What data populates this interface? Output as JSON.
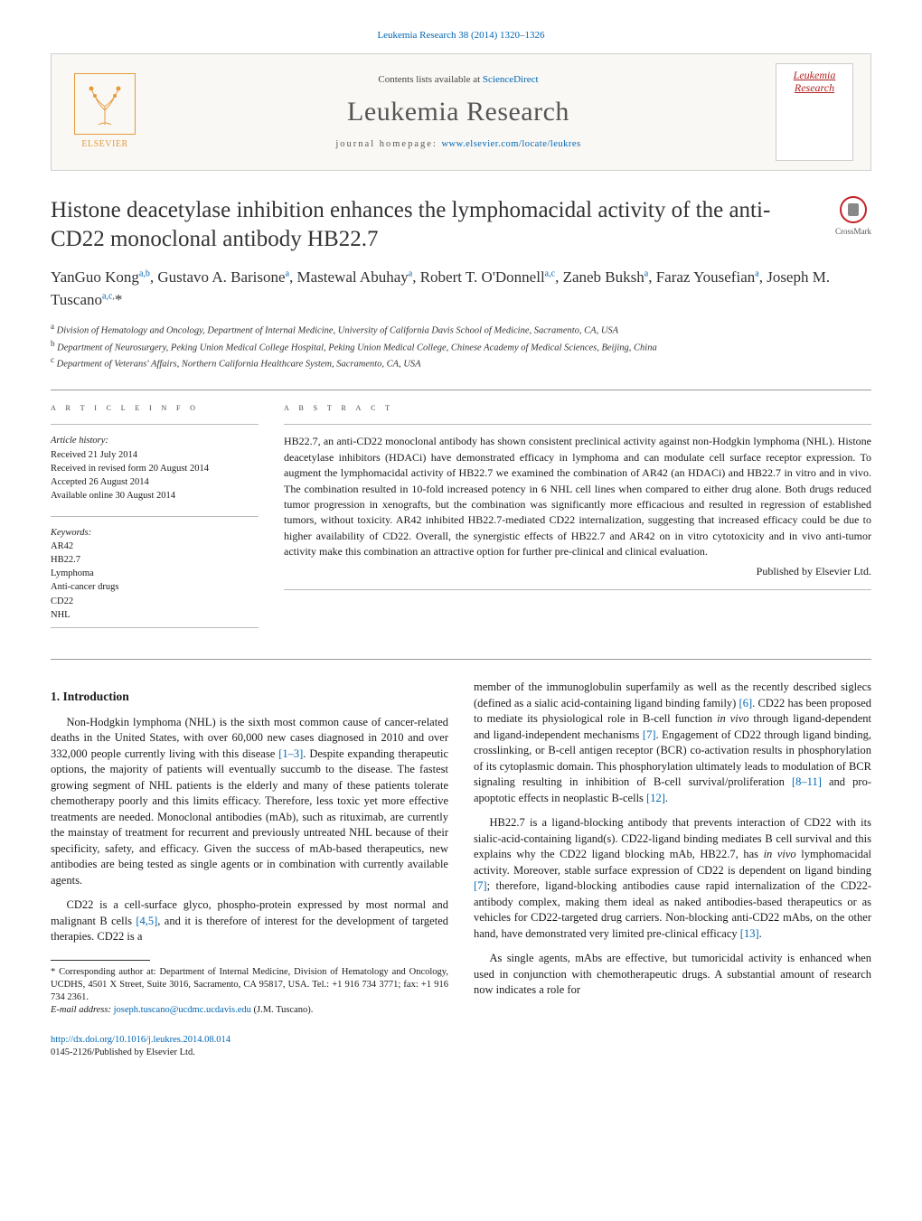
{
  "colors": {
    "link": "#0066b3",
    "elsevier_orange": "#e69a3a",
    "crossmark_red": "#c42026",
    "cover_red": "#b02020",
    "text": "#1a1a1a",
    "muted": "#555555",
    "rule": "#999999"
  },
  "header": {
    "citation": "Leukemia Research 38 (2014) 1320–1326",
    "contents_prefix": "Contents lists available at ",
    "contents_link": "ScienceDirect",
    "journal": "Leukemia Research",
    "homepage_label": "journal homepage: ",
    "homepage_url": "www.elsevier.com/locate/leukres",
    "publisher_logo_text": "ELSEVIER",
    "cover_title": "Leukemia Research"
  },
  "article": {
    "title": "Histone deacetylase inhibition enhances the lymphomacidal activity of the anti-CD22 monoclonal antibody HB22.7",
    "crossmark_label": "CrossMark",
    "authors_html": "YanGuo Kong<sup>a,b</sup>, Gustavo A. Barisone<sup>a</sup>, Mastewal Abuhay<sup>a</sup>, Robert T. O'Donnell<sup>a,c</sup>, Zaneb Buksh<sup>a</sup>, Faraz Yousefian<sup>a</sup>, Joseph M. Tuscano<sup>a,c,</sup><span class=\"asterisk\">*</span>",
    "affiliations": [
      {
        "marker": "a",
        "text": "Division of Hematology and Oncology, Department of Internal Medicine, University of California Davis School of Medicine, Sacramento, CA, USA"
      },
      {
        "marker": "b",
        "text": "Department of Neurosurgery, Peking Union Medical College Hospital, Peking Union Medical College, Chinese Academy of Medical Sciences, Beijing, China"
      },
      {
        "marker": "c",
        "text": "Department of Veterans' Affairs, Northern California Healthcare System, Sacramento, CA, USA"
      }
    ]
  },
  "info": {
    "heading": "a r t i c l e   i n f o",
    "history_label": "Article history:",
    "history": [
      "Received 21 July 2014",
      "Received in revised form 20 August 2014",
      "Accepted 26 August 2014",
      "Available online 30 August 2014"
    ],
    "keywords_label": "Keywords:",
    "keywords": [
      "AR42",
      "HB22.7",
      "Lymphoma",
      "Anti-cancer drugs",
      "CD22",
      "NHL"
    ]
  },
  "abstract": {
    "heading": "a b s t r a c t",
    "text": "HB22.7, an anti-CD22 monoclonal antibody has shown consistent preclinical activity against non-Hodgkin lymphoma (NHL). Histone deacetylase inhibitors (HDACi) have demonstrated efficacy in lymphoma and can modulate cell surface receptor expression. To augment the lymphomacidal activity of HB22.7 we examined the combination of AR42 (an HDACi) and HB22.7 in vitro and in vivo. The combination resulted in 10-fold increased potency in 6 NHL cell lines when compared to either drug alone. Both drugs reduced tumor progression in xenografts, but the combination was significantly more efficacious and resulted in regression of established tumors, without toxicity. AR42 inhibited HB22.7-mediated CD22 internalization, suggesting that increased efficacy could be due to higher availability of CD22. Overall, the synergistic effects of HB22.7 and AR42 on in vitro cytotoxicity and in vivo anti-tumor activity make this combination an attractive option for further pre-clinical and clinical evaluation.",
    "publisher": "Published by Elsevier Ltd."
  },
  "body": {
    "section_number": "1.",
    "section_title": "Introduction",
    "paragraphs_left": [
      "Non-Hodgkin lymphoma (NHL) is the sixth most common cause of cancer-related deaths in the United States, with over 60,000 new cases diagnosed in 2010 and over 332,000 people currently living with this disease [1–3]. Despite expanding therapeutic options, the majority of patients will eventually succumb to the disease. The fastest growing segment of NHL patients is the elderly and many of these patients tolerate chemotherapy poorly and this limits efficacy. Therefore, less toxic yet more effective treatments are needed. Monoclonal antibodies (mAb), such as rituximab, are currently the mainstay of treatment for recurrent and previously untreated NHL because of their specificity, safety, and efficacy. Given the success of mAb-based therapeutics, new antibodies are being tested as single agents or in combination with currently available agents.",
      "CD22 is a cell-surface glyco, phospho-protein expressed by most normal and malignant B cells [4,5], and it is therefore of interest for the development of targeted therapies. CD22 is a"
    ],
    "paragraphs_right": [
      "member of the immunoglobulin superfamily as well as the recently described siglecs (defined as a sialic acid-containing ligand binding family) [6]. CD22 has been proposed to mediate its physiological role in B-cell function in vivo through ligand-dependent and ligand-independent mechanisms [7]. Engagement of CD22 through ligand binding, crosslinking, or B-cell antigen receptor (BCR) co-activation results in phosphorylation of its cytoplasmic domain. This phosphorylation ultimately leads to modulation of BCR signaling resulting in inhibition of B-cell survival/proliferation [8–11] and pro-apoptotic effects in neoplastic B-cells [12].",
      "HB22.7 is a ligand-blocking antibody that prevents interaction of CD22 with its sialic-acid-containing ligand(s). CD22-ligand binding mediates B cell survival and this explains why the CD22 ligand blocking mAb, HB22.7, has in vivo lymphomacidal activity. Moreover, stable surface expression of CD22 is dependent on ligand binding [7]; therefore, ligand-blocking antibodies cause rapid internalization of the CD22-antibody complex, making them ideal as naked antibodies-based therapeutics or as vehicles for CD22-targeted drug carriers. Non-blocking anti-CD22 mAbs, on the other hand, have demonstrated very limited pre-clinical efficacy [13].",
      "As single agents, mAbs are effective, but tumoricidal activity is enhanced when used in conjunction with chemotherapeutic drugs. A substantial amount of research now indicates a role for"
    ],
    "refs_in_text": {
      "r1_3": "[1–3]",
      "r4_5": "[4,5]",
      "r6": "[6]",
      "r7a": "[7]",
      "r8_11": "[8–11]",
      "r12": "[12]",
      "r7b": "[7]",
      "r13": "[13]"
    }
  },
  "footnotes": {
    "corresponding": "* Corresponding author at: Department of Internal Medicine, Division of Hematology and Oncology, UCDHS, 4501 X Street, Suite 3016, Sacramento, CA 95817, USA. Tel.: +1 916 734 3771; fax: +1 916 734 2361.",
    "email_label": "E-mail address: ",
    "email": "joseph.tuscano@ucdmc.ucdavis.edu",
    "email_suffix": " (J.M. Tuscano)."
  },
  "doi": {
    "url": "http://dx.doi.org/10.1016/j.leukres.2014.08.014",
    "issn_line": "0145-2126/Published by Elsevier Ltd."
  }
}
